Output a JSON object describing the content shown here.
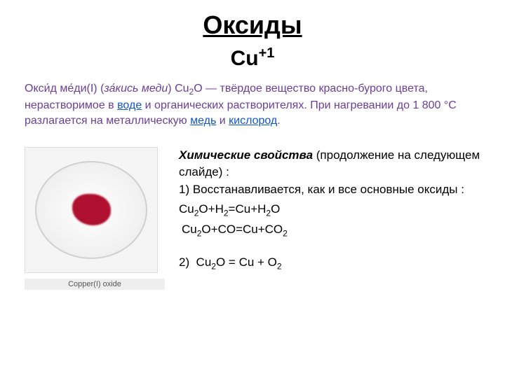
{
  "title": "Оксиды",
  "subtitle_base": "Cu",
  "subtitle_sup": "+1",
  "intro": {
    "part1": "Окси́д ме́ди(I) (",
    "part2": "за́кись меди",
    "part3": ") Cu",
    "sub1": "2",
    "part4": "O — твёрдое вещество красно-бурого цвета, нерастворимое в ",
    "link1": "воде",
    "part5": " и органических растворителях. При нагревании до 1 800 °С разлагается на металлическую ",
    "link2": "медь",
    "part6": " и ",
    "link3": "кислород",
    "part7": "."
  },
  "image_caption": "Copper(I) oxide",
  "powder_color": "#b01030",
  "props": {
    "title": "Химические свойства",
    "title_cont": " (продолжение на следующем слайде) :",
    "item1": "1) Восстанавливается, как и все основные оксиды :",
    "formula1": "Cu₂O+H₂=Cu+H₂O",
    "formula2": " Cu₂O+CO=Cu+CO₂",
    "item2": "2)  Cu₂O = Cu + O₂"
  },
  "colors": {
    "intro_text": "#6b3d99",
    "link": "#1155cc",
    "body_text": "#000000"
  }
}
